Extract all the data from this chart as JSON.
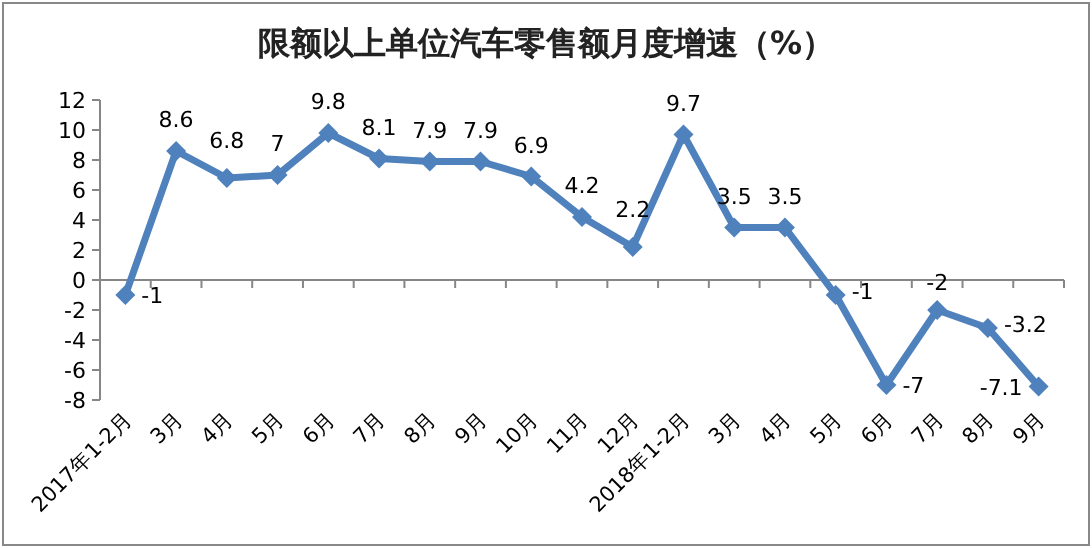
{
  "chart_data": {
    "type": "line",
    "title": "限额以上单位汽车零售额月度增速（%）",
    "categories": [
      "2017年1-2月",
      "3月",
      "4月",
      "5月",
      "6月",
      "7月",
      "8月",
      "9月",
      "10月",
      "11月",
      "12月",
      "2018年1-2月",
      "3月",
      "4月",
      "5月",
      "6月",
      "7月",
      "8月",
      "9月"
    ],
    "series": [
      {
        "color": "#4f81bd",
        "values": [
          -1,
          8.6,
          6.8,
          7,
          9.8,
          8.1,
          7.9,
          7.9,
          6.9,
          4.2,
          2.2,
          9.7,
          3.5,
          3.5,
          -1,
          -7,
          -2,
          -3.2,
          -7.1
        ]
      }
    ],
    "ylim": [
      -8,
      12
    ],
    "yticks": [
      -8,
      -6,
      -4,
      -2,
      0,
      2,
      4,
      6,
      8,
      10,
      12
    ],
    "data_labels": true,
    "marker": "diamond",
    "line_style": "solid"
  }
}
